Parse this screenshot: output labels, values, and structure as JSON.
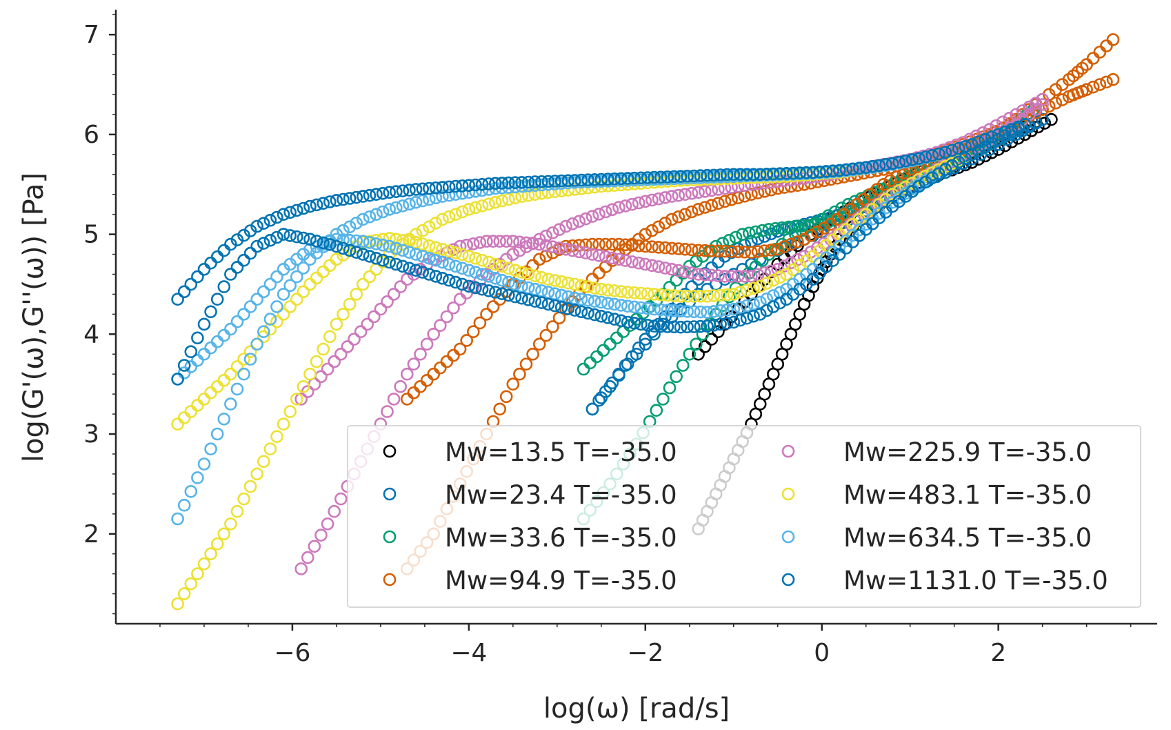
{
  "chart_data": {
    "type": "scatter",
    "xlabel": "log(ω) [rad/s]",
    "ylabel": "log(G'(ω),G''(ω)) [Pa]",
    "xlim": [
      -8.0,
      3.8
    ],
    "ylim": [
      1.1,
      7.25
    ],
    "x_ticks": [
      -6,
      -4,
      -2,
      0,
      2
    ],
    "x_tick_labels": [
      "−6",
      "−4",
      "−2",
      "0",
      "2"
    ],
    "y_ticks": [
      2,
      3,
      4,
      5,
      6,
      7
    ],
    "y_tick_labels": [
      "2",
      "3",
      "4",
      "5",
      "6",
      "7"
    ],
    "marker": "open-circle",
    "grid": false,
    "legend": {
      "placement": "lower-right",
      "columns": 2
    },
    "series": [
      {
        "name": "Mw=13.5 T=-35.0",
        "color": "#000000",
        "storage": {
          "x": [
            -1.4,
            -1.2,
            -1.0,
            -0.8,
            -0.6,
            -0.4,
            -0.2,
            0.0,
            0.2,
            0.5,
            0.8,
            1.1,
            1.4,
            1.7,
            2.0,
            2.3,
            2.6
          ],
          "y": [
            2.05,
            2.4,
            2.75,
            3.1,
            3.5,
            3.9,
            4.3,
            4.65,
            4.95,
            5.2,
            5.38,
            5.52,
            5.62,
            5.72,
            5.85,
            6.0,
            6.15
          ]
        },
        "loss": {
          "x": [
            -1.4,
            -1.1,
            -0.8,
            -0.5,
            -0.2,
            0.1,
            0.4,
            0.7,
            1.0,
            1.3,
            1.6,
            1.9,
            2.2,
            2.5
          ],
          "y": [
            3.8,
            4.1,
            4.4,
            4.7,
            4.95,
            5.15,
            5.3,
            5.45,
            5.58,
            5.7,
            5.82,
            5.95,
            6.05,
            6.15
          ]
        }
      },
      {
        "name": "Mw=23.4 T=-35.0",
        "color": "#0173b2",
        "storage": {
          "x": [
            -2.6,
            -2.3,
            -2.0,
            -1.7,
            -1.4,
            -1.1,
            -0.8,
            -0.5,
            -0.2,
            0.1,
            0.4,
            0.7,
            1.0,
            1.3,
            1.6,
            1.9,
            2.2,
            2.5
          ],
          "y": [
            3.25,
            3.6,
            3.95,
            4.25,
            4.55,
            4.78,
            4.93,
            5.03,
            5.1,
            5.17,
            5.25,
            5.35,
            5.47,
            5.6,
            5.75,
            5.9,
            6.03,
            6.15
          ]
        },
        "loss": {
          "x": [
            -2.6,
            -2.2,
            -1.8,
            -1.4,
            -1.0,
            -0.6,
            -0.2,
            0.2,
            0.6,
            1.0,
            1.4,
            1.8,
            2.2,
            2.5
          ],
          "y": [
            3.25,
            3.7,
            4.1,
            4.4,
            4.6,
            4.8,
            4.95,
            5.1,
            5.28,
            5.45,
            5.62,
            5.8,
            6.0,
            6.15
          ]
        }
      },
      {
        "name": "Mw=33.6 T=-35.0",
        "color": "#029e73",
        "storage": {
          "x": [
            -2.7,
            -2.4,
            -2.1,
            -1.8,
            -1.5,
            -1.2,
            -0.9,
            -0.6,
            -0.3,
            0.0,
            0.3,
            0.6,
            0.9,
            1.2,
            1.5,
            1.8,
            2.1,
            2.4
          ],
          "y": [
            2.15,
            2.5,
            2.9,
            3.35,
            3.8,
            4.2,
            4.55,
            4.8,
            5.0,
            5.15,
            5.3,
            5.42,
            5.55,
            5.67,
            5.8,
            5.92,
            6.05,
            6.25
          ]
        },
        "loss": {
          "x": [
            -2.7,
            -2.4,
            -2.1,
            -1.8,
            -1.5,
            -1.2,
            -0.9,
            -0.6,
            -0.3,
            0.0,
            0.3,
            0.6,
            0.9,
            1.2,
            1.5,
            1.8,
            2.1,
            2.4
          ],
          "y": [
            3.65,
            3.9,
            4.15,
            4.4,
            4.68,
            4.88,
            5.0,
            5.05,
            5.08,
            5.1,
            5.2,
            5.35,
            5.5,
            5.62,
            5.75,
            5.88,
            6.05,
            6.25
          ]
        }
      },
      {
        "name": "Mw=94.9 T=-35.0",
        "color": "#d55e00",
        "storage": {
          "x": [
            -4.7,
            -4.4,
            -4.1,
            -3.8,
            -3.5,
            -3.2,
            -2.9,
            -2.6,
            -2.3,
            -2.0,
            -1.7,
            -1.4,
            -1.1,
            -0.8,
            -0.5,
            -0.2,
            0.1,
            0.4,
            0.7,
            1.0,
            1.3,
            1.6,
            1.9,
            2.2,
            2.5,
            2.8,
            3.0,
            3.3
          ],
          "y": [
            1.65,
            2.0,
            2.5,
            3.0,
            3.5,
            3.9,
            4.25,
            4.55,
            4.8,
            5.0,
            5.15,
            5.25,
            5.33,
            5.4,
            5.46,
            5.5,
            5.55,
            5.6,
            5.65,
            5.72,
            5.8,
            5.9,
            6.0,
            6.12,
            6.25,
            6.38,
            6.45,
            6.55
          ]
        },
        "loss": {
          "x": [
            -4.7,
            -4.4,
            -4.1,
            -3.8,
            -3.5,
            -3.2,
            -2.9,
            -2.6,
            -2.3,
            -2.0,
            -1.7,
            -1.4,
            -1.1,
            -0.8,
            -0.5,
            -0.2,
            0.1,
            0.4,
            0.7,
            1.0,
            1.3,
            1.6,
            1.9,
            2.2,
            2.5,
            2.8,
            3.0,
            3.3
          ],
          "y": [
            3.35,
            3.6,
            3.85,
            4.2,
            4.5,
            4.75,
            4.88,
            4.9,
            4.9,
            4.88,
            4.86,
            4.84,
            4.83,
            4.82,
            4.85,
            4.95,
            5.1,
            5.3,
            5.5,
            5.65,
            5.75,
            5.85,
            5.98,
            6.15,
            6.35,
            6.55,
            6.7,
            6.95
          ]
        }
      },
      {
        "name": "Mw=225.9 T=-35.0",
        "color": "#cc78bc",
        "storage": {
          "x": [
            -5.9,
            -5.6,
            -5.3,
            -5.0,
            -4.7,
            -4.4,
            -4.1,
            -3.8,
            -3.5,
            -3.2,
            -2.9,
            -2.6,
            -2.3,
            -2.0,
            -1.7,
            -1.4,
            -1.1,
            -0.8,
            -0.5,
            -0.2,
            0.1,
            0.4,
            0.7,
            1.0,
            1.3,
            1.6,
            1.9,
            2.2,
            2.5
          ],
          "y": [
            1.65,
            2.1,
            2.6,
            3.1,
            3.6,
            4.0,
            4.35,
            4.6,
            4.8,
            4.95,
            5.08,
            5.18,
            5.27,
            5.33,
            5.38,
            5.42,
            5.46,
            5.5,
            5.53,
            5.56,
            5.6,
            5.65,
            5.7,
            5.75,
            5.82,
            5.92,
            6.05,
            6.2,
            6.35
          ]
        },
        "loss": {
          "x": [
            -5.9,
            -5.6,
            -5.3,
            -5.0,
            -4.7,
            -4.4,
            -4.1,
            -3.8,
            -3.5,
            -3.2,
            -2.9,
            -2.6,
            -2.3,
            -2.0,
            -1.7,
            -1.4,
            -1.1,
            -0.8,
            -0.5,
            -0.2,
            0.1,
            0.4,
            0.7,
            1.0,
            1.3,
            1.6,
            1.9,
            2.2,
            2.5
          ],
          "y": [
            3.35,
            3.65,
            3.95,
            4.25,
            4.55,
            4.75,
            4.88,
            4.93,
            4.93,
            4.9,
            4.85,
            4.8,
            4.75,
            4.7,
            4.65,
            4.6,
            4.58,
            4.58,
            4.65,
            4.78,
            4.95,
            5.15,
            5.35,
            5.5,
            5.65,
            5.8,
            5.95,
            6.1,
            6.3
          ]
        }
      },
      {
        "name": "Mw=483.1 T=-35.0",
        "color": "#ece133",
        "storage": {
          "x": [
            -7.3,
            -7.0,
            -6.7,
            -6.4,
            -6.1,
            -5.8,
            -5.5,
            -5.2,
            -4.9,
            -4.6,
            -4.3,
            -4.0,
            -3.7,
            -3.4,
            -3.1,
            -2.8,
            -2.5,
            -2.2,
            -1.9,
            -1.6,
            -1.3,
            -1.0,
            -0.7,
            -0.4,
            -0.1,
            0.2,
            0.5,
            0.8,
            1.1,
            1.4,
            1.7,
            2.0,
            2.3
          ],
          "y": [
            1.3,
            1.7,
            2.1,
            2.6,
            3.1,
            3.6,
            4.1,
            4.5,
            4.8,
            5.0,
            5.15,
            5.25,
            5.32,
            5.38,
            5.42,
            5.45,
            5.48,
            5.5,
            5.52,
            5.54,
            5.55,
            5.56,
            5.57,
            5.58,
            5.6,
            5.62,
            5.66,
            5.7,
            5.75,
            5.82,
            5.9,
            6.0,
            6.1
          ]
        },
        "loss": {
          "x": [
            -7.3,
            -7.0,
            -6.7,
            -6.4,
            -6.1,
            -5.8,
            -5.5,
            -5.2,
            -4.9,
            -4.6,
            -4.3,
            -4.0,
            -3.7,
            -3.4,
            -3.1,
            -2.8,
            -2.5,
            -2.2,
            -1.9,
            -1.6,
            -1.3,
            -1.0,
            -0.7,
            -0.4,
            -0.1,
            0.2,
            0.5,
            0.8,
            1.1,
            1.4,
            1.7,
            2.0,
            2.3
          ],
          "y": [
            3.1,
            3.35,
            3.6,
            3.9,
            4.2,
            4.5,
            4.75,
            4.92,
            4.96,
            4.92,
            4.85,
            4.78,
            4.7,
            4.62,
            4.55,
            4.5,
            4.45,
            4.42,
            4.4,
            4.38,
            4.38,
            4.4,
            4.48,
            4.6,
            4.78,
            5.0,
            5.2,
            5.4,
            5.55,
            5.68,
            5.8,
            5.95,
            6.1
          ]
        }
      },
      {
        "name": "Mw=634.5 T=-35.0",
        "color": "#56b4e9",
        "storage": {
          "x": [
            -7.3,
            -7.0,
            -6.7,
            -6.4,
            -6.1,
            -5.8,
            -5.5,
            -5.2,
            -4.9,
            -4.6,
            -4.3,
            -4.0,
            -3.7,
            -3.4,
            -3.1,
            -2.8,
            -2.5,
            -2.2,
            -1.9,
            -1.6,
            -1.3,
            -1.0,
            -0.7,
            -0.4,
            -0.1,
            0.2,
            0.5,
            0.8,
            1.1,
            1.4,
            1.7,
            2.0,
            2.3
          ],
          "y": [
            2.15,
            2.7,
            3.3,
            3.9,
            4.4,
            4.75,
            5.0,
            5.15,
            5.25,
            5.32,
            5.38,
            5.42,
            5.46,
            5.48,
            5.5,
            5.52,
            5.53,
            5.54,
            5.55,
            5.56,
            5.57,
            5.58,
            5.59,
            5.6,
            5.61,
            5.63,
            5.66,
            5.7,
            5.75,
            5.82,
            5.9,
            6.0,
            6.1
          ]
        },
        "loss": {
          "x": [
            -7.3,
            -7.0,
            -6.7,
            -6.4,
            -6.1,
            -5.8,
            -5.5,
            -5.2,
            -4.9,
            -4.6,
            -4.3,
            -4.0,
            -3.7,
            -3.4,
            -3.1,
            -2.8,
            -2.5,
            -2.2,
            -1.9,
            -1.6,
            -1.3,
            -1.0,
            -0.7,
            -0.4,
            -0.1,
            0.2,
            0.5,
            0.8,
            1.1,
            1.4,
            1.7,
            2.0,
            2.3
          ],
          "y": [
            3.55,
            3.8,
            4.05,
            4.35,
            4.65,
            4.85,
            4.95,
            4.93,
            4.88,
            4.8,
            4.72,
            4.64,
            4.56,
            4.48,
            4.42,
            4.36,
            4.32,
            4.28,
            4.25,
            4.23,
            4.22,
            4.25,
            4.32,
            4.45,
            4.65,
            4.88,
            5.1,
            5.32,
            5.5,
            5.65,
            5.8,
            5.95,
            6.1
          ]
        }
      },
      {
        "name": "Mw=1131.0 T=-35.0",
        "color": "#0173b2",
        "storage": {
          "x": [
            -7.3,
            -7.0,
            -6.7,
            -6.4,
            -6.1,
            -5.8,
            -5.5,
            -5.2,
            -4.9,
            -4.6,
            -4.3,
            -4.0,
            -3.7,
            -3.4,
            -3.1,
            -2.8,
            -2.5,
            -2.2,
            -1.9,
            -1.6,
            -1.3,
            -1.0,
            -0.7,
            -0.4,
            -0.1,
            0.2,
            0.5,
            0.8,
            1.1,
            1.4,
            1.7,
            2.0,
            2.3
          ],
          "y": [
            4.35,
            4.65,
            4.9,
            5.08,
            5.2,
            5.28,
            5.34,
            5.38,
            5.42,
            5.45,
            5.47,
            5.49,
            5.51,
            5.52,
            5.53,
            5.54,
            5.55,
            5.56,
            5.57,
            5.58,
            5.59,
            5.6,
            5.6,
            5.61,
            5.62,
            5.64,
            5.67,
            5.71,
            5.76,
            5.82,
            5.9,
            6.0,
            6.1
          ]
        },
        "loss": {
          "x": [
            -7.3,
            -7.0,
            -6.7,
            -6.4,
            -6.1,
            -5.8,
            -5.5,
            -5.2,
            -4.9,
            -4.6,
            -4.3,
            -4.0,
            -3.7,
            -3.4,
            -3.1,
            -2.8,
            -2.5,
            -2.2,
            -1.9,
            -1.6,
            -1.3,
            -1.0,
            -0.7,
            -0.4,
            -0.1,
            0.2,
            0.5,
            0.8,
            1.1,
            1.4,
            1.7,
            2.0,
            2.3
          ],
          "y": [
            3.55,
            4.1,
            4.6,
            4.88,
            5.0,
            4.95,
            4.88,
            4.8,
            4.72,
            4.64,
            4.56,
            4.48,
            4.42,
            4.36,
            4.3,
            4.24,
            4.18,
            4.12,
            4.08,
            4.07,
            4.08,
            4.12,
            4.2,
            4.35,
            4.55,
            4.8,
            5.05,
            5.28,
            5.48,
            5.65,
            5.8,
            5.95,
            6.1
          ]
        }
      }
    ]
  }
}
